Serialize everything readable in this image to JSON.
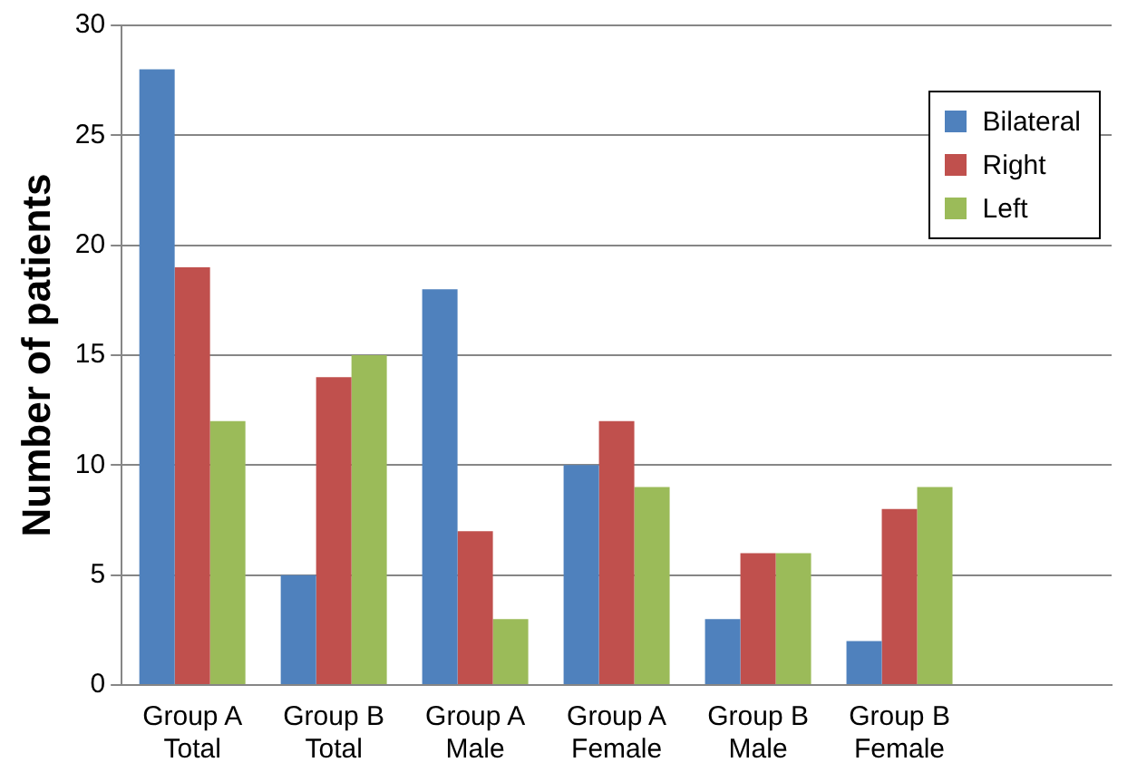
{
  "chart_data": {
    "type": "bar",
    "ylabel": "Number of patients",
    "categories": [
      "Group A Total",
      "Group B Total",
      "Group A Male",
      "Group A Female",
      "Group B Male",
      "Group B Female",
      null
    ],
    "series": [
      {
        "name": "Bilateral",
        "color": "#4f81bd",
        "values": [
          28,
          5,
          18,
          10,
          3,
          2,
          null
        ]
      },
      {
        "name": "Right",
        "color": "#c0504d",
        "values": [
          19,
          14,
          7,
          12,
          6,
          8,
          null
        ]
      },
      {
        "name": "Left",
        "color": "#9bbb59",
        "values": [
          12,
          15,
          3,
          9,
          6,
          9,
          null
        ]
      }
    ],
    "ylim": [
      0,
      30
    ],
    "yticks": [
      0,
      5,
      10,
      15,
      20,
      25,
      30
    ],
    "grid": "y",
    "legend": "top right"
  }
}
